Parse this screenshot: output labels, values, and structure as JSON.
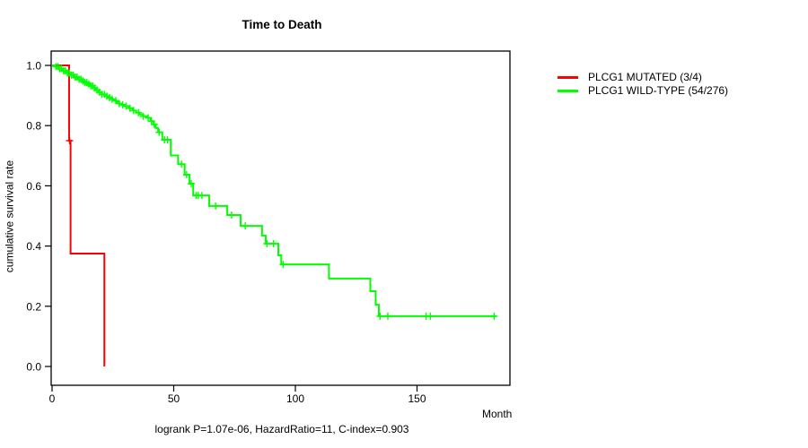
{
  "page": {
    "background": "#ffffff"
  },
  "chart_data": {
    "type": "line",
    "subtype": "kaplan-meier-survival-step",
    "title": "Time to Death",
    "xlabel": "Month",
    "ylabel": "cumulative survival rate",
    "annotation": "logrank P=1.07e-06, HazardRatio=11, C-index=0.903",
    "x_ticks": [
      0,
      50,
      100,
      150
    ],
    "y_tick_labels": [
      "0.0",
      "0.2",
      "0.4",
      "0.6",
      "0.8",
      "1.0"
    ],
    "xlim": [
      0,
      188
    ],
    "ylim": [
      0,
      1.05
    ],
    "grid": false,
    "legend_position": "right-outside-top",
    "frame_color": "#000000",
    "series": [
      {
        "name": "PLCG1 MUTATED (3/4)",
        "color": "#ff0000",
        "steps": [
          [
            0,
            1.0
          ],
          [
            7,
            0.75
          ],
          [
            7.6,
            0.375
          ],
          [
            21.5,
            0.0
          ]
        ],
        "end_month": 21.5,
        "censor_months": [
          7.2
        ]
      },
      {
        "name": "PLCG1 WILD-TYPE (54/276)",
        "color": "#00ff00",
        "steps": [
          [
            0,
            1.0
          ],
          [
            1.5,
            0.996
          ],
          [
            3,
            0.989
          ],
          [
            4.5,
            0.982
          ],
          [
            6,
            0.975
          ],
          [
            7.5,
            0.968
          ],
          [
            9,
            0.961
          ],
          [
            10.5,
            0.954
          ],
          [
            12,
            0.948
          ],
          [
            13.2,
            0.943
          ],
          [
            14.4,
            0.938
          ],
          [
            15.6,
            0.932
          ],
          [
            16.8,
            0.925
          ],
          [
            18,
            0.918
          ],
          [
            19.2,
            0.911
          ],
          [
            20.4,
            0.904
          ],
          [
            21.6,
            0.898
          ],
          [
            22.8,
            0.893
          ],
          [
            24,
            0.888
          ],
          [
            25.2,
            0.883
          ],
          [
            26.4,
            0.878
          ],
          [
            27.6,
            0.873
          ],
          [
            28.8,
            0.869
          ],
          [
            30,
            0.865
          ],
          [
            31.5,
            0.858
          ],
          [
            33,
            0.85
          ],
          [
            34.5,
            0.843
          ],
          [
            36,
            0.837
          ],
          [
            37.5,
            0.831
          ],
          [
            39,
            0.826
          ],
          [
            40.5,
            0.815
          ],
          [
            41.6,
            0.804
          ],
          [
            42.6,
            0.792
          ],
          [
            43.6,
            0.778
          ],
          [
            45.3,
            0.753
          ],
          [
            48.8,
            0.701
          ],
          [
            51.8,
            0.672
          ],
          [
            54.5,
            0.637
          ],
          [
            56.5,
            0.607
          ],
          [
            58,
            0.568
          ],
          [
            64.6,
            0.533
          ],
          [
            72,
            0.503
          ],
          [
            77.5,
            0.467
          ],
          [
            86.3,
            0.435
          ],
          [
            87.8,
            0.408
          ],
          [
            93,
            0.369
          ],
          [
            94.2,
            0.339
          ],
          [
            113.8,
            0.292
          ],
          [
            130.8,
            0.25
          ],
          [
            133,
            0.205
          ],
          [
            134.3,
            0.167
          ]
        ],
        "end_month": 182.5,
        "censor_months": [
          1.6,
          2.4,
          3.1,
          3.9,
          4.7,
          5.5,
          6.3,
          7.1,
          7.9,
          8.7,
          9.5,
          10.3,
          11.1,
          11.9,
          12.7,
          13.5,
          14.3,
          15.1,
          15.9,
          16.7,
          17.5,
          18.5,
          19.5,
          20.5,
          21.5,
          22.5,
          23.6,
          24.7,
          26.2,
          27.6,
          29,
          30.4,
          32,
          33.5,
          35.5,
          37.5,
          39.5,
          40.8,
          42,
          44,
          46.2,
          47.4,
          53.2,
          55.3,
          57.2,
          59.2,
          60.1,
          61.6,
          67.2,
          73.8,
          79.4,
          88.3,
          91,
          95,
          134.8,
          138,
          153.7,
          155.5,
          181.7
        ]
      }
    ]
  }
}
